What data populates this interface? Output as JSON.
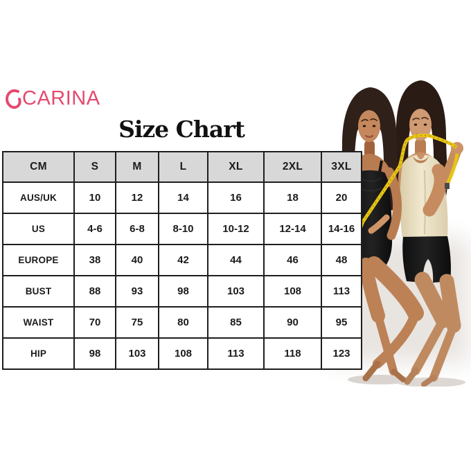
{
  "brand": {
    "name": "CARINA",
    "color": "#e5496f"
  },
  "title": "Size Chart",
  "size_table": {
    "columns": [
      "CM",
      "S",
      "M",
      "L",
      "XL",
      "2XL",
      "3XL"
    ],
    "rows": [
      {
        "label": "AUS/UK",
        "values": [
          "10",
          "12",
          "14",
          "16",
          "18",
          "20"
        ]
      },
      {
        "label": "US",
        "values": [
          "4-6",
          "6-8",
          "8-10",
          "10-12",
          "12-14",
          "14-16"
        ]
      },
      {
        "label": "EUROPE",
        "values": [
          "38",
          "40",
          "42",
          "44",
          "46",
          "48"
        ]
      },
      {
        "label": "BUST",
        "values": [
          "88",
          "93",
          "98",
          "103",
          "108",
          "113"
        ]
      },
      {
        "label": "WAIST",
        "values": [
          "70",
          "75",
          "80",
          "85",
          "90",
          "95"
        ]
      },
      {
        "label": "HIP",
        "values": [
          "98",
          "103",
          "108",
          "113",
          "118",
          "123"
        ]
      }
    ],
    "header_bg": "#d8d8d8",
    "border_color": "#1e1e1e"
  },
  "photo": {
    "subject": "two-models-wearing-shapewear",
    "tape_color": "#e6c414"
  }
}
